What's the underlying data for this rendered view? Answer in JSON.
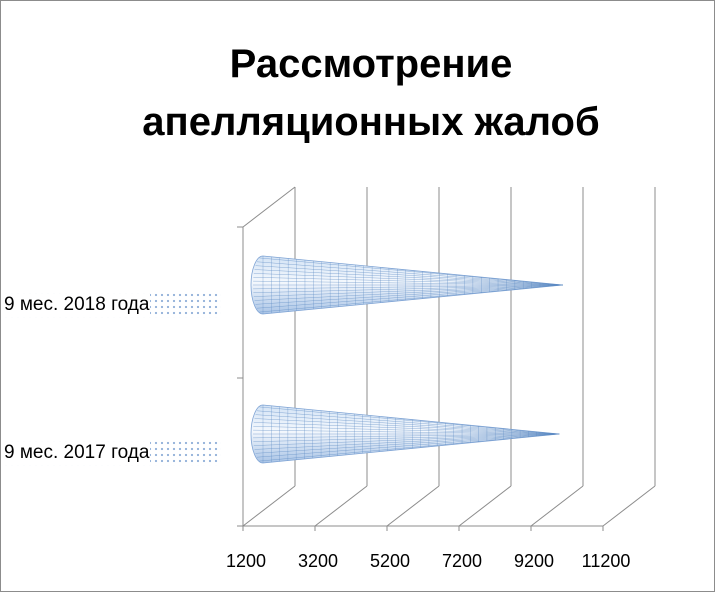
{
  "chart_data": {
    "type": "bar",
    "title_lines": [
      "Рассмотрение",
      "апелляционных жалоб"
    ],
    "categories": [
      "9 мес. 2018 года",
      "9 мес. 2017 года"
    ],
    "values": [
      10250,
      10150
    ],
    "xlim": [
      1200,
      11200
    ],
    "xticks": [
      "1200",
      "3200",
      "5200",
      "7200",
      "9200",
      "11200"
    ],
    "grid": true,
    "legend": "none",
    "bar_color": "#4f81bd"
  }
}
